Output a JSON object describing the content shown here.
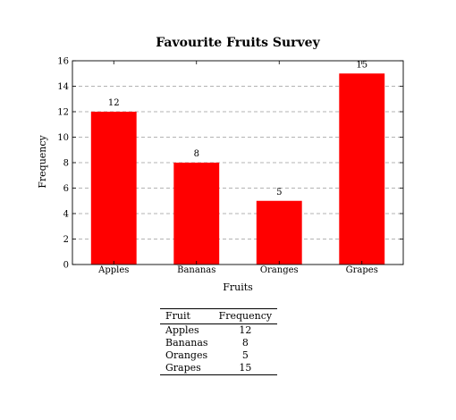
{
  "chart_data": {
    "type": "bar",
    "title": "Favourite Fruits Survey",
    "xlabel": "Fruits",
    "ylabel": "Frequency",
    "categories": [
      "Apples",
      "Bananas",
      "Oranges",
      "Grapes"
    ],
    "values": [
      12,
      8,
      5,
      15
    ],
    "ylim": [
      0,
      16
    ],
    "yticks": [
      0,
      2,
      4,
      6,
      8,
      10,
      12,
      14,
      16
    ],
    "grid": "horizontal dashed",
    "bar_color": "#ff0000",
    "show_data_labels": true
  },
  "table": {
    "headers": {
      "fruit": "Fruit",
      "frequency": "Frequency"
    },
    "rows": [
      {
        "fruit": "Apples",
        "frequency": "12"
      },
      {
        "fruit": "Bananas",
        "frequency": "8"
      },
      {
        "fruit": "Oranges",
        "frequency": "5"
      },
      {
        "fruit": "Grapes",
        "frequency": "15"
      }
    ]
  }
}
